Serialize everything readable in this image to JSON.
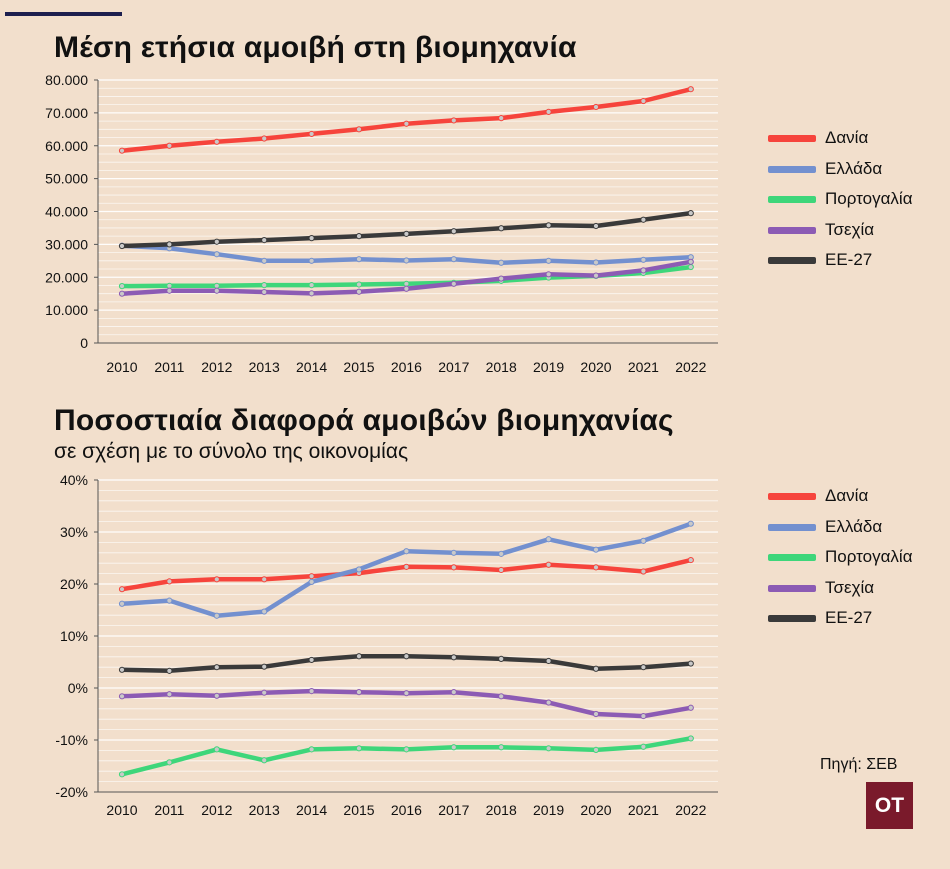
{
  "colors": {
    "background": "#f2dfcc",
    "grid": "#ffffff",
    "Δανία": "#f6443c",
    "Ελλάδα": "#7390cf",
    "Πορτογαλία": "#3ed67a",
    "Τσεχία": "#8c5bb4",
    "ΕΕ-27": "#3a3a3a",
    "logo_bg": "#7a1a2b"
  },
  "source": "Πηγή: ΣΕΒ",
  "logo": "OT",
  "chart_data": [
    {
      "type": "line",
      "title": "Μέση ετήσια αμοιβή στη βιομηχανία",
      "subtitle": "",
      "xlabel": "",
      "ylabel": "",
      "x": [
        "2010",
        "2011",
        "2012",
        "2013",
        "2014",
        "2015",
        "2016",
        "2017",
        "2018",
        "2019",
        "2020",
        "2021",
        "2022"
      ],
      "ylim": [
        0,
        80000
      ],
      "ytick_values": [
        0,
        10000,
        20000,
        30000,
        40000,
        50000,
        60000,
        70000,
        80000
      ],
      "ytick_labels": [
        "0",
        "10.000",
        "20.000",
        "30.000",
        "40.000",
        "50.000",
        "60.000",
        "70.000",
        "80.000"
      ],
      "grid": true,
      "legend": "right",
      "series": [
        {
          "name": "Δανία",
          "values": [
            58500,
            60000,
            61200,
            62200,
            63600,
            65000,
            66700,
            67700,
            68400,
            70300,
            71800,
            73600,
            77200
          ]
        },
        {
          "name": "Ελλάδα",
          "values": [
            29600,
            28800,
            27000,
            25000,
            25000,
            25500,
            25100,
            25500,
            24400,
            25000,
            24500,
            25300,
            26100
          ]
        },
        {
          "name": "Πορτογαλία",
          "values": [
            17300,
            17400,
            17400,
            17600,
            17600,
            17800,
            18000,
            18300,
            18900,
            19900,
            20400,
            21300,
            23100
          ]
        },
        {
          "name": "Τσεχία",
          "values": [
            15000,
            15900,
            15900,
            15500,
            15100,
            15600,
            16500,
            18000,
            19600,
            20900,
            20500,
            22100,
            24700
          ]
        },
        {
          "name": "ΕΕ-27",
          "values": [
            29500,
            30000,
            30800,
            31300,
            31900,
            32500,
            33200,
            34000,
            34900,
            35800,
            35600,
            37500,
            39500
          ]
        }
      ]
    },
    {
      "type": "line",
      "title": "Ποσοστιαία διαφορά αμοιβών βιομηχανίας",
      "subtitle": "σε σχέση με το σύνολο της οικονομίας",
      "xlabel": "",
      "ylabel": "",
      "x": [
        "2010",
        "2011",
        "2012",
        "2013",
        "2014",
        "2015",
        "2016",
        "2017",
        "2018",
        "2019",
        "2020",
        "2021",
        "2022"
      ],
      "ylim": [
        -20,
        40
      ],
      "ytick_values": [
        -20,
        -10,
        0,
        10,
        20,
        30,
        40
      ],
      "ytick_labels": [
        "-20%",
        "-10%",
        "0%",
        "10%",
        "20%",
        "30%",
        "40%"
      ],
      "grid": true,
      "legend": "right",
      "series": [
        {
          "name": "Δανία",
          "values": [
            19.0,
            20.5,
            20.9,
            20.9,
            21.5,
            22.1,
            23.3,
            23.2,
            22.7,
            23.7,
            23.2,
            22.4,
            24.6
          ]
        },
        {
          "name": "Ελλάδα",
          "values": [
            16.2,
            16.8,
            13.9,
            14.7,
            20.4,
            22.8,
            26.3,
            26.0,
            25.8,
            28.6,
            26.6,
            28.3,
            31.6
          ]
        },
        {
          "name": "Πορτογαλία",
          "values": [
            -16.6,
            -14.3,
            -11.8,
            -13.9,
            -11.8,
            -11.6,
            -11.8,
            -11.4,
            -11.4,
            -11.6,
            -11.9,
            -11.3,
            -9.7
          ]
        },
        {
          "name": "Τσεχία",
          "values": [
            -1.6,
            -1.2,
            -1.5,
            -0.9,
            -0.6,
            -0.8,
            -1.0,
            -0.8,
            -1.6,
            -2.8,
            -5.0,
            -5.4,
            -3.8
          ]
        },
        {
          "name": "ΕΕ-27",
          "values": [
            3.5,
            3.3,
            4.0,
            4.1,
            5.4,
            6.1,
            6.1,
            5.9,
            5.6,
            5.2,
            3.7,
            4.0,
            4.7
          ]
        }
      ]
    }
  ]
}
